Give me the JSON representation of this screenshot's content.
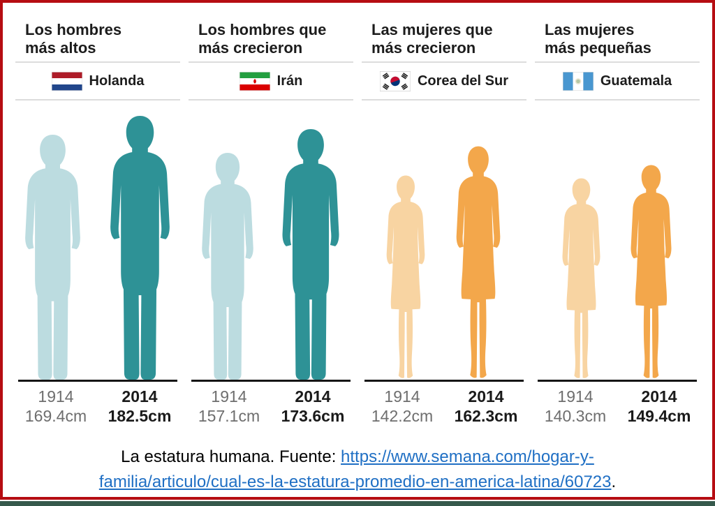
{
  "frame": {
    "border_color": "#b60d12",
    "bottom_strip_color": "#36594c"
  },
  "columns": [
    {
      "title": "Los hombres\nmás altos",
      "country": "Holanda",
      "flag_icon": "netherlands-flag",
      "gender": "male",
      "silhouette_color_1914": "#bcdce0",
      "silhouette_color_2014": "#2e9296",
      "year_1914": "1914",
      "year_2014": "2014",
      "height_1914": "169.4cm",
      "height_2014": "182.5cm"
    },
    {
      "title": "Los hombres que\nmás crecieron",
      "country": "Irán",
      "flag_icon": "iran-flag",
      "gender": "male",
      "silhouette_color_1914": "#bcdce0",
      "silhouette_color_2014": "#2e9296",
      "year_1914": "1914",
      "year_2014": "2014",
      "height_1914": "157.1cm",
      "height_2014": "173.6cm"
    },
    {
      "title": "Las mujeres que\nmás crecieron",
      "country": "Corea del Sur",
      "flag_icon": "south-korea-flag",
      "gender": "female",
      "silhouette_color_1914": "#f8d4a2",
      "silhouette_color_2014": "#f3a74b",
      "year_1914": "1914",
      "year_2014": "2014",
      "height_1914": "142.2cm",
      "height_2014": "162.3cm"
    },
    {
      "title": "Las mujeres\nmás pequeñas",
      "country": "Guatemala",
      "flag_icon": "guatemala-flag",
      "gender": "female",
      "silhouette_color_1914": "#f8d4a2",
      "silhouette_color_2014": "#f3a74b",
      "year_1914": "1914",
      "year_2014": "2014",
      "height_1914": "140.3cm",
      "height_2014": "149.4cm"
    }
  ],
  "caption": {
    "prefix": "La estatura humana. Fuente: ",
    "link_text_line1": "https://www.semana.com/hogar-y-",
    "link_text_line2": "familia/articulo/cual-es-la-estatura-promedio-en-america-latina/60723",
    "suffix": ".",
    "link_color": "#1f6fc4"
  },
  "chart_data": {
    "type": "bar",
    "title": "La estatura humana",
    "categories": [
      "Holanda",
      "Irán",
      "Corea del Sur",
      "Guatemala"
    ],
    "category_headlines": [
      "Los hombres más altos",
      "Los hombres que más crecieron",
      "Las mujeres que más crecieron",
      "Las mujeres más pequeñas"
    ],
    "series": [
      {
        "name": "1914",
        "values": [
          169.4,
          157.1,
          142.2,
          140.3
        ]
      },
      {
        "name": "2014",
        "values": [
          182.5,
          173.6,
          162.3,
          149.4
        ]
      }
    ],
    "unit": "cm",
    "ylim": [
      0,
      200
    ],
    "grid": false,
    "legend_position": "below-figures",
    "style": "pictogram-human-silhouettes"
  }
}
